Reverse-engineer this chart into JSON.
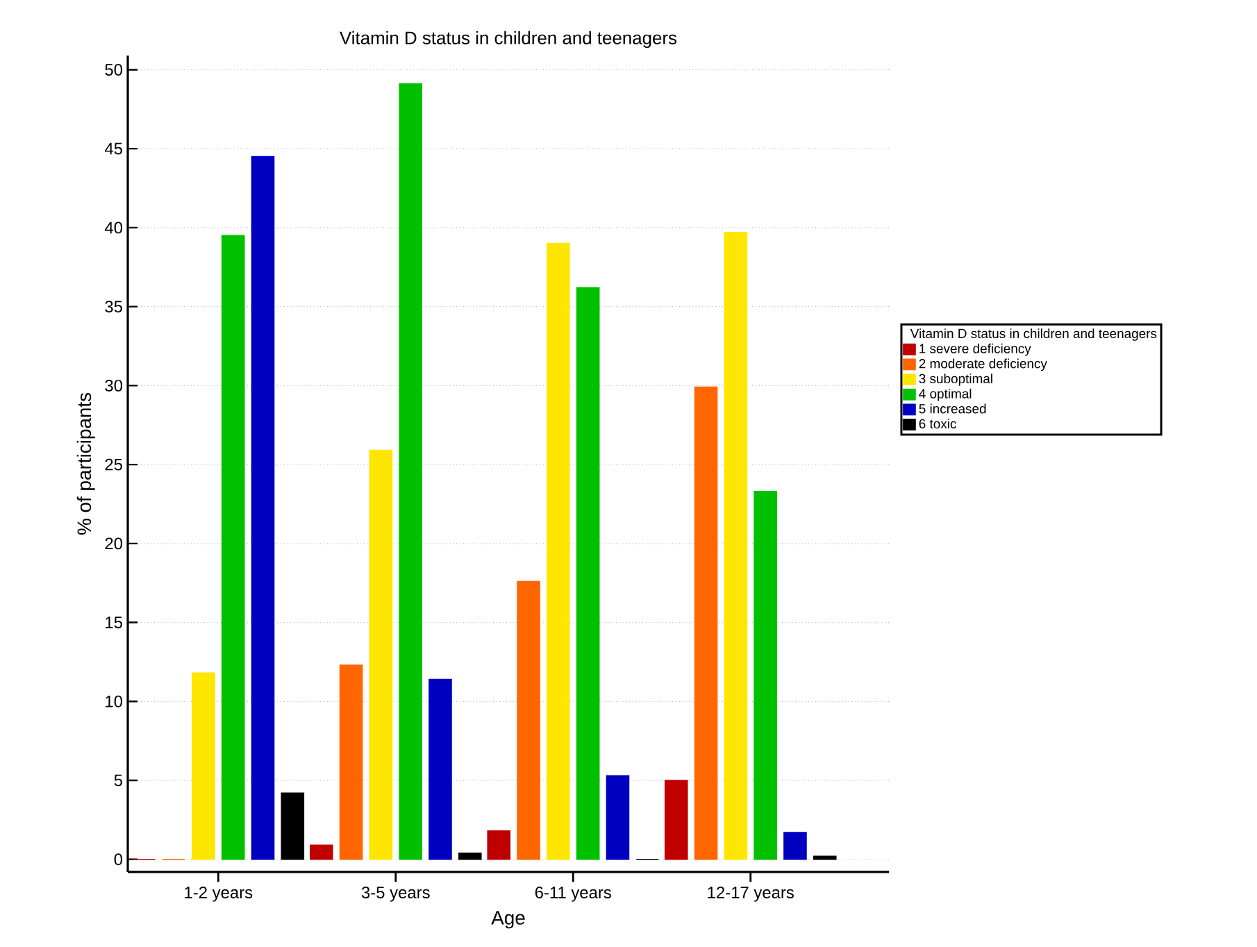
{
  "chart_data": {
    "type": "bar",
    "title": "Vitamin D status in children and teenagers",
    "xlabel": "Age",
    "ylabel": "% of participants",
    "legend_title": "Vitamin D status in children and teenagers",
    "categories": [
      "1-2 years",
      "3-5 years",
      "6-11 years",
      "12-17 years"
    ],
    "series": [
      {
        "name": "1 severe deficiency",
        "color": "#c00000",
        "values": [
          0,
          0.9,
          1.8,
          5.0
        ]
      },
      {
        "name": "2 moderate deficiency",
        "color": "#ff6600",
        "values": [
          0,
          12.3,
          17.6,
          29.9
        ]
      },
      {
        "name": "3 suboptimal",
        "color": "#ffe600",
        "values": [
          11.8,
          25.9,
          39.0,
          39.7
        ]
      },
      {
        "name": "4 optimal",
        "color": "#00c000",
        "values": [
          39.5,
          49.1,
          36.2,
          23.3
        ]
      },
      {
        "name": "5 increased",
        "color": "#0000c0",
        "values": [
          44.5,
          11.4,
          5.3,
          1.7
        ]
      },
      {
        "name": "6 toxic",
        "color": "#000000",
        "values": [
          4.2,
          0.4,
          0,
          0.2
        ]
      }
    ],
    "ylim": [
      -0.8,
      50.9
    ],
    "yticks": [
      0,
      5,
      10,
      15,
      20,
      25,
      30,
      35,
      40,
      45,
      50
    ],
    "grid": "y",
    "legend": "right"
  }
}
